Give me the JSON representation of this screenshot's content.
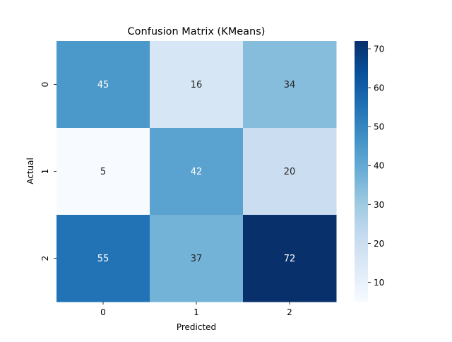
{
  "chart_data": {
    "type": "heatmap",
    "title": "Confusion Matrix (KMeans)",
    "xlabel": "Predicted",
    "ylabel": "Actual",
    "x_categories": [
      "0",
      "1",
      "2"
    ],
    "y_categories": [
      "0",
      "1",
      "2"
    ],
    "values": [
      [
        45,
        16,
        34
      ],
      [
        5,
        42,
        20
      ],
      [
        55,
        37,
        72
      ]
    ],
    "colormap": "Blues",
    "color_range": [
      5,
      72
    ],
    "colorbar_ticks": [
      10,
      20,
      30,
      40,
      50,
      60,
      70
    ],
    "annotation_color_light": "#ffffff",
    "annotation_color_dark": "#262626"
  }
}
